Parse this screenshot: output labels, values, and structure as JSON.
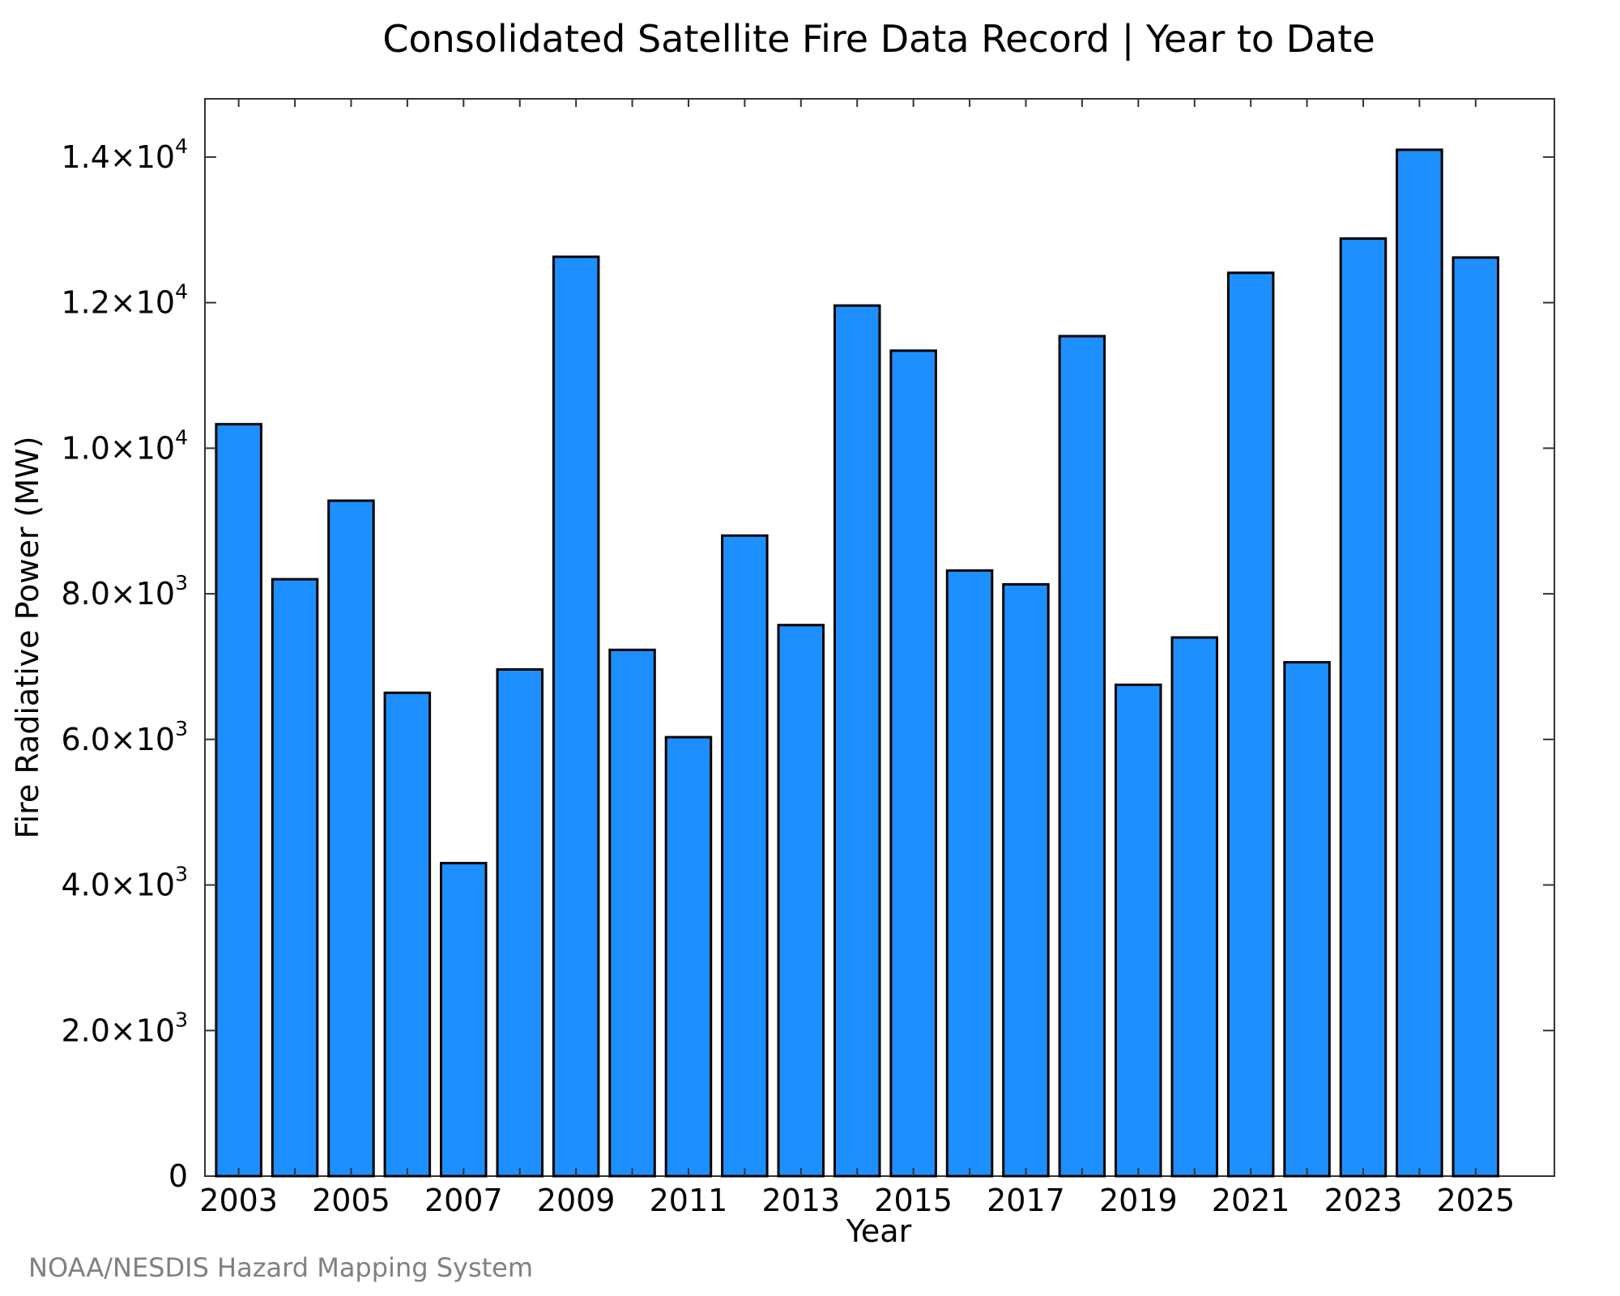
{
  "chart_data": {
    "type": "bar",
    "title": "Consolidated Satellite Fire Data Record | Year to Date",
    "xlabel": "Year",
    "ylabel": "Fire Radiative Power (MW)",
    "ylim": [
      0,
      14800
    ],
    "grid": false,
    "legend": "none",
    "bar_color": "#1E8FFF",
    "edge_color": "#000000",
    "categories": [
      2003,
      2004,
      2005,
      2006,
      2007,
      2008,
      2009,
      2010,
      2011,
      2012,
      2013,
      2014,
      2015,
      2016,
      2017,
      2018,
      2019,
      2020,
      2021,
      2022,
      2023,
      2024,
      2025
    ],
    "values": [
      10330,
      8200,
      9280,
      6640,
      4300,
      6960,
      12630,
      7230,
      6030,
      8800,
      7570,
      11960,
      11340,
      8320,
      8130,
      11540,
      6750,
      7400,
      12410,
      7060,
      12880,
      14100,
      12620
    ],
    "x_tick_labels": [
      "2003",
      "2005",
      "2007",
      "2009",
      "2011",
      "2013",
      "2015",
      "2017",
      "2019",
      "2021",
      "2023",
      "2025"
    ],
    "y_ticks": [
      {
        "value": 0,
        "mantissa": "0",
        "exp": ""
      },
      {
        "value": 2000,
        "mantissa": "2.0×10",
        "exp": "3"
      },
      {
        "value": 4000,
        "mantissa": "4.0×10",
        "exp": "3"
      },
      {
        "value": 6000,
        "mantissa": "6.0×10",
        "exp": "3"
      },
      {
        "value": 8000,
        "mantissa": "8.0×10",
        "exp": "3"
      },
      {
        "value": 10000,
        "mantissa": "1.0×10",
        "exp": "4"
      },
      {
        "value": 12000,
        "mantissa": "1.2×10",
        "exp": "4"
      },
      {
        "value": 14000,
        "mantissa": "1.4×10",
        "exp": "4"
      }
    ]
  },
  "credit": "NOAA/NESDIS Hazard Mapping System"
}
